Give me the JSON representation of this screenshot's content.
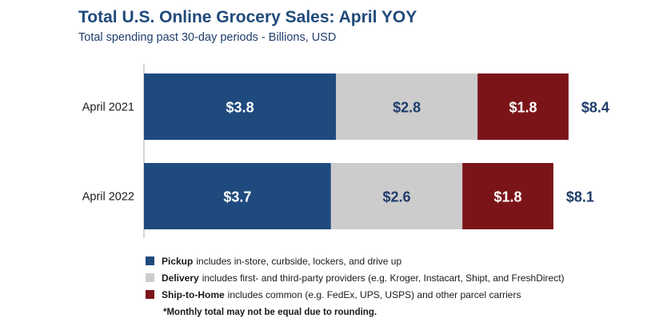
{
  "chart_data": {
    "type": "bar",
    "orientation": "horizontal",
    "stacked": true,
    "title": "Total U.S. Online Grocery Sales: April YOY",
    "subtitle": "Total spending past 30-day periods - Billions, USD",
    "categories": [
      "April  2021",
      "April 2022"
    ],
    "series": [
      {
        "name": "Pickup",
        "values": [
          3.8,
          3.7
        ],
        "labels": [
          "$3.8",
          "$3.7"
        ],
        "color": "#1f4a7e",
        "label_color": "#ffffff"
      },
      {
        "name": "Delivery",
        "values": [
          2.8,
          2.6
        ],
        "labels": [
          "$2.8",
          "$2.6"
        ],
        "color": "#cccccc",
        "label_color": "#1f3d6b"
      },
      {
        "name": "Ship-to-Home",
        "values": [
          1.8,
          1.8
        ],
        "labels": [
          "$1.8",
          "$1.8"
        ],
        "color": "#7b1419",
        "label_color": "#ffffff"
      }
    ],
    "totals": [
      "$8.4",
      "$8.1"
    ],
    "grid": false,
    "legend_position": "bottom"
  },
  "legend": [
    {
      "name": "Pickup",
      "desc": "includes in-store, curbside, lockers, and drive up",
      "color": "#1f4a7e"
    },
    {
      "name": "Delivery",
      "desc": "includes first- and third-party providers (e.g. Kroger, Instacart, Shipt, and FreshDirect)",
      "color": "#cccccc"
    },
    {
      "name": "Ship-to-Home",
      "desc": "includes common (e.g. FedEx, UPS, USPS) and other parcel carriers",
      "color": "#7b1419"
    }
  ],
  "footnote": "*Monthly total may not be equal due to rounding."
}
